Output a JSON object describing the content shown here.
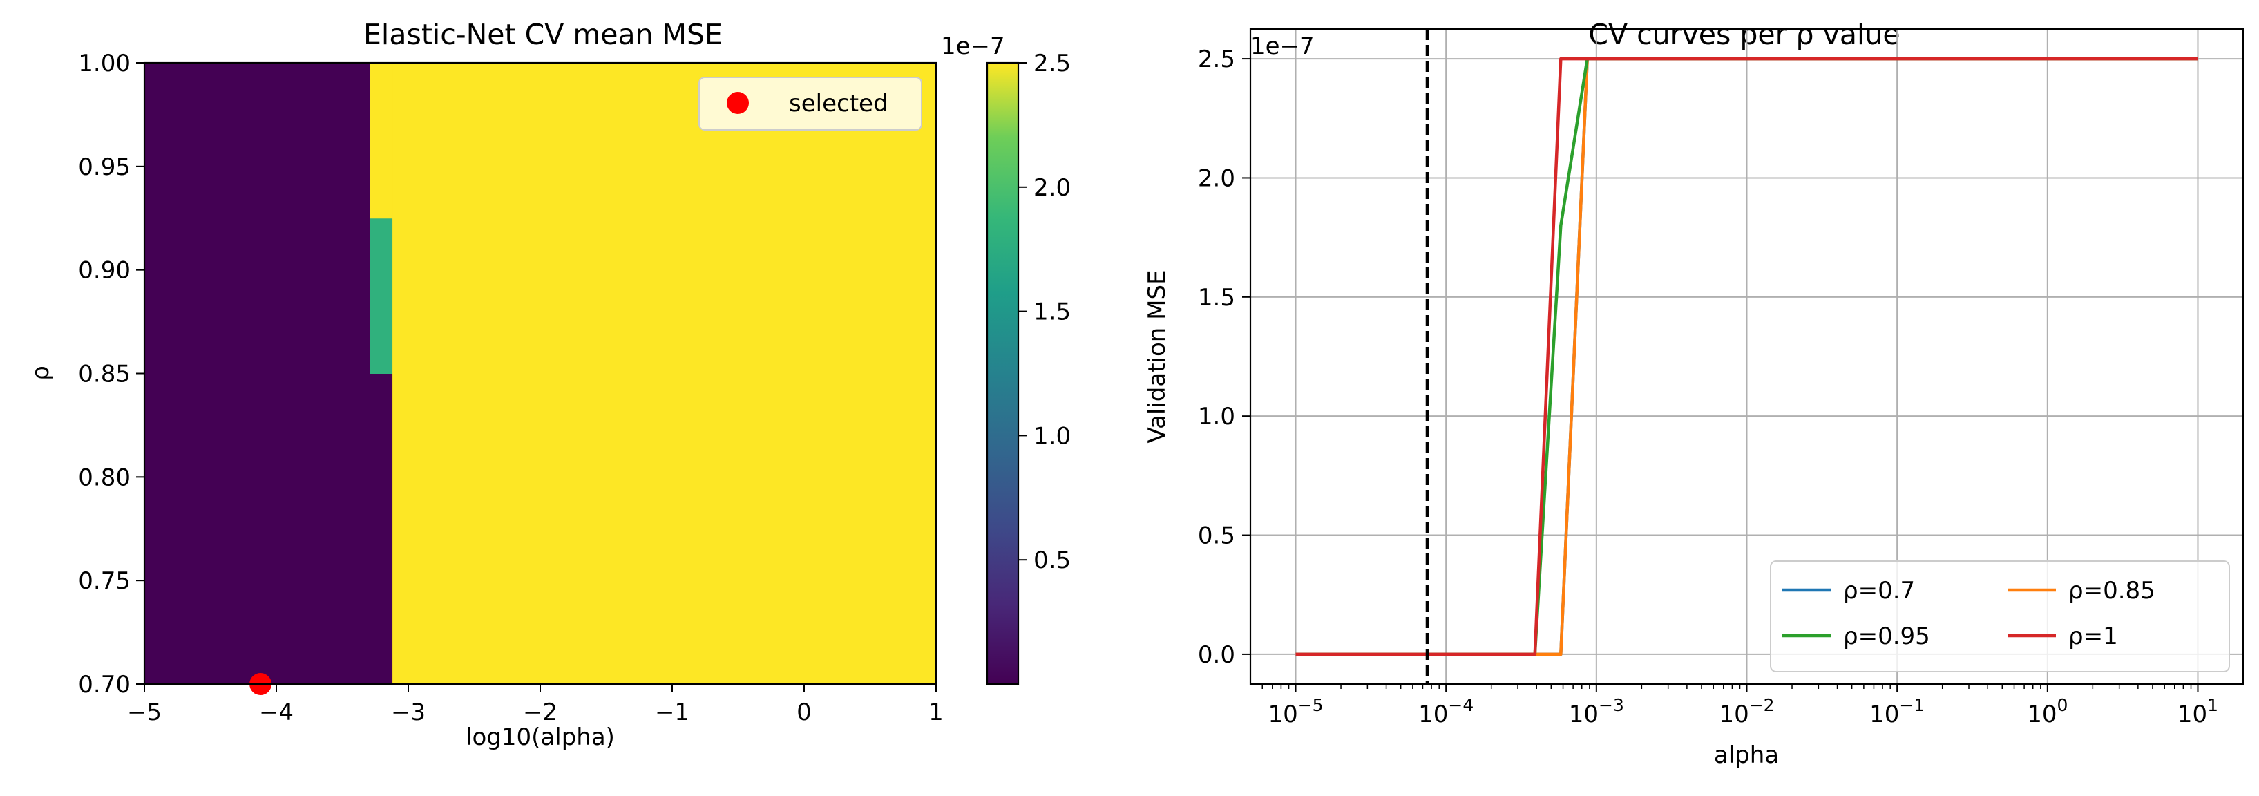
{
  "chart_data": [
    {
      "type": "heatmap",
      "title": "Elastic-Net CV mean MSE",
      "xlabel": "log10(alpha)",
      "ylabel": "ρ",
      "xlim": [
        -5,
        1
      ],
      "ylim": [
        0.7,
        1.0
      ],
      "x_ticks": [
        "−5",
        "−4",
        "−3",
        "−2",
        "−1",
        "0",
        "1"
      ],
      "x_tick_values": [
        -5,
        -4,
        -3,
        -2,
        -1,
        0,
        1
      ],
      "y_ticks": [
        "0.70",
        "0.75",
        "0.80",
        "0.85",
        "0.90",
        "0.95",
        "1.00"
      ],
      "y_tick_values": [
        0.7,
        0.75,
        0.8,
        0.85,
        0.9,
        0.95,
        1.0
      ],
      "colormap": "viridis",
      "low_color": "#440154",
      "high_color": "#fde725",
      "cells": [
        {
          "x0": -5,
          "x1": -3.29,
          "y0": 0.7,
          "y1": 1.0,
          "value": 0.0
        },
        {
          "x0": -3.29,
          "x1": -3.12,
          "y0": 0.7,
          "y1": 0.85,
          "value": 0.0
        },
        {
          "x0": -3.29,
          "x1": -3.12,
          "y0": 0.85,
          "y1": 0.925,
          "value": 1.8
        },
        {
          "x0": -3.29,
          "x1": -3.12,
          "y0": 0.925,
          "y1": 1.0,
          "value": 2.5
        },
        {
          "x0": -3.12,
          "x1": 1,
          "y0": 0.7,
          "y1": 1.0,
          "value": 2.5
        }
      ],
      "selected_point": {
        "x": -4.12,
        "y": 0.7,
        "color": "#ff0000"
      },
      "legend": {
        "label": "selected",
        "placement": "top-right"
      },
      "colorbar": {
        "range": [
          0.0,
          2.5
        ],
        "ticks": [
          "0.5",
          "1.0",
          "1.5",
          "2.0",
          "2.5"
        ],
        "tick_values": [
          0.5,
          1.0,
          1.5,
          2.0,
          2.5
        ],
        "multiplier": "1e−7"
      }
    },
    {
      "type": "line",
      "title": "CV curves per ρ value",
      "xlabel": "alpha",
      "ylabel": "Validation MSE",
      "x_scale": "log",
      "xlim": [
        5e-06,
        20
      ],
      "ylim": [
        -0.125,
        2.625
      ],
      "y_multiplier": "1e−7",
      "grid": true,
      "x_ticks": [
        {
          "base": "10",
          "exp": "−5",
          "value": 1e-05
        },
        {
          "base": "10",
          "exp": "−4",
          "value": 0.0001
        },
        {
          "base": "10",
          "exp": "−3",
          "value": 0.001
        },
        {
          "base": "10",
          "exp": "−2",
          "value": 0.01
        },
        {
          "base": "10",
          "exp": "−1",
          "value": 0.1
        },
        {
          "base": "10",
          "exp": "0",
          "value": 1
        },
        {
          "base": "10",
          "exp": "1",
          "value": 10
        }
      ],
      "y_ticks": [
        "0.0",
        "0.5",
        "1.0",
        "1.5",
        "2.0",
        "2.5"
      ],
      "y_tick_values": [
        0,
        0.5,
        1.0,
        1.5,
        2.0,
        2.5
      ],
      "vline": {
        "x": 7.5e-05,
        "style": "dashed",
        "color": "#000000"
      },
      "legend": {
        "placement": "lower-right",
        "columns": 2
      },
      "series": [
        {
          "name": "ρ=0.7",
          "color": "#1f77b4",
          "x": [
            1e-05,
            0.00058,
            0.00087,
            10
          ],
          "y": [
            0,
            0,
            2.5,
            2.5
          ]
        },
        {
          "name": "ρ=0.85",
          "color": "#ff7f0e",
          "x": [
            1e-05,
            0.00058,
            0.00087,
            10
          ],
          "y": [
            0,
            0,
            2.5,
            2.5
          ]
        },
        {
          "name": "ρ=0.95",
          "color": "#2ca02c",
          "x": [
            1e-05,
            0.00039,
            0.00058,
            0.00087,
            10
          ],
          "y": [
            0,
            0,
            1.8,
            2.5,
            2.5
          ]
        },
        {
          "name": "ρ=1",
          "color": "#d62728",
          "x": [
            1e-05,
            0.00039,
            0.00058,
            10
          ],
          "y": [
            0,
            0,
            2.5,
            2.5
          ]
        }
      ]
    }
  ]
}
